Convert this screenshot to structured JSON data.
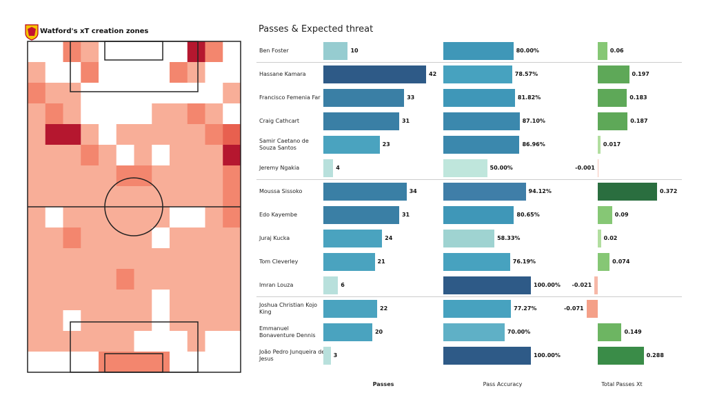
{
  "chart_data": [
    {
      "type": "heatmap",
      "title": "Watford's xT creation zones",
      "colors": [
        "#ffffff",
        "#fcd5c8",
        "#f8ae98",
        "#f3866e",
        "#e8604f",
        "#b5172f"
      ],
      "values": [
        [
          0,
          0,
          3,
          2,
          0,
          0,
          0,
          0,
          0,
          5,
          3,
          0
        ],
        [
          2,
          0,
          0,
          3,
          0,
          0,
          0,
          0,
          3,
          2,
          0,
          0
        ],
        [
          3,
          2,
          2,
          0,
          0,
          0,
          0,
          0,
          0,
          0,
          0,
          2
        ],
        [
          2,
          3,
          2,
          0,
          0,
          0,
          0,
          2,
          2,
          3,
          2,
          0
        ],
        [
          2,
          5,
          5,
          2,
          0,
          2,
          2,
          2,
          2,
          2,
          3,
          4
        ],
        [
          2,
          2,
          2,
          3,
          2,
          0,
          2,
          0,
          2,
          2,
          2,
          5
        ],
        [
          2,
          2,
          2,
          2,
          2,
          3,
          3,
          2,
          2,
          2,
          2,
          3
        ],
        [
          2,
          2,
          2,
          2,
          2,
          2,
          2,
          2,
          2,
          2,
          2,
          3
        ],
        [
          2,
          0,
          2,
          2,
          2,
          2,
          2,
          2,
          0,
          0,
          2,
          3
        ],
        [
          2,
          2,
          3,
          2,
          2,
          2,
          2,
          0,
          2,
          2,
          2,
          2
        ],
        [
          2,
          2,
          2,
          2,
          2,
          2,
          2,
          2,
          2,
          2,
          2,
          2
        ],
        [
          2,
          2,
          2,
          2,
          2,
          3,
          2,
          2,
          2,
          2,
          2,
          2
        ],
        [
          2,
          2,
          2,
          2,
          2,
          2,
          2,
          0,
          2,
          2,
          2,
          2
        ],
        [
          2,
          2,
          0,
          2,
          2,
          2,
          2,
          0,
          2,
          2,
          2,
          2
        ],
        [
          2,
          2,
          2,
          2,
          2,
          2,
          0,
          0,
          0,
          2,
          0,
          0
        ],
        [
          0,
          0,
          0,
          0,
          3,
          3,
          3,
          3,
          0,
          0,
          0,
          0
        ]
      ]
    },
    {
      "type": "bar-table",
      "title": "Passes & Expected threat",
      "categories": [
        "Ben Foster",
        "Hassane Kamara",
        "Francisco Femenia Far",
        "Craig Cathcart",
        "Samir Caetano de Souza Santos",
        "Jeremy Ngakia",
        "Moussa Sissoko",
        "Edo Kayembe",
        "Juraj Kucka",
        "Tom Cleverley",
        "Imran Louza",
        "Joshua Christian Kojo King",
        "Emmanuel Bonaventure Dennis",
        "João Pedro Junqueira de Jesus"
      ],
      "series": [
        {
          "name": "Passes",
          "values": [
            10,
            42,
            33,
            31,
            23,
            4,
            34,
            31,
            24,
            21,
            6,
            22,
            20,
            3
          ],
          "colors": [
            "#96ccd0",
            "#2e5a87",
            "#3a7fa5",
            "#3a7fa5",
            "#4aa3bf",
            "#b8e0dc",
            "#3a7fa5",
            "#3a7fa5",
            "#4aa3bf",
            "#4aa3bf",
            "#b8e0dc",
            "#4aa3bf",
            "#4aa3bf",
            "#b8e0dc"
          ]
        },
        {
          "name": "Pass Accuracy",
          "values": [
            80,
            78.57,
            81.82,
            87.1,
            86.96,
            50,
            94.12,
            80.65,
            58.33,
            76.19,
            100,
            77.27,
            70,
            100
          ],
          "value_labels": [
            "80.00%",
            "78.57%",
            "81.82%",
            "87.10%",
            "86.96%",
            "50.00%",
            "94.12%",
            "80.65%",
            "58.33%",
            "76.19%",
            "100.00%",
            "77.27%",
            "70.00%",
            "100.00%"
          ],
          "colors": [
            "#3f97b8",
            "#47a2bf",
            "#3f97b8",
            "#3b88ad",
            "#3b88ad",
            "#bfe6dc",
            "#3f7ea8",
            "#3f97b8",
            "#9fd3d1",
            "#47a2bf",
            "#2e5a87",
            "#47a2bf",
            "#5fb0c6",
            "#2e5a87"
          ]
        },
        {
          "name": "Total Passes Xt",
          "values": [
            0.06,
            0.197,
            0.183,
            0.187,
            0.017,
            -0.001,
            0.372,
            0.09,
            0.02,
            0.074,
            -0.021,
            -0.071,
            0.149,
            0.288
          ],
          "colors": [
            "#86c775",
            "#5ea858",
            "#5ea858",
            "#5ea858",
            "#b2dea0",
            "#f6c4b6",
            "#2a6e3f",
            "#86c775",
            "#b2dea0",
            "#86c775",
            "#f6b8a8",
            "#f4a088",
            "#6db562",
            "#3a8c48"
          ]
        }
      ]
    }
  ]
}
